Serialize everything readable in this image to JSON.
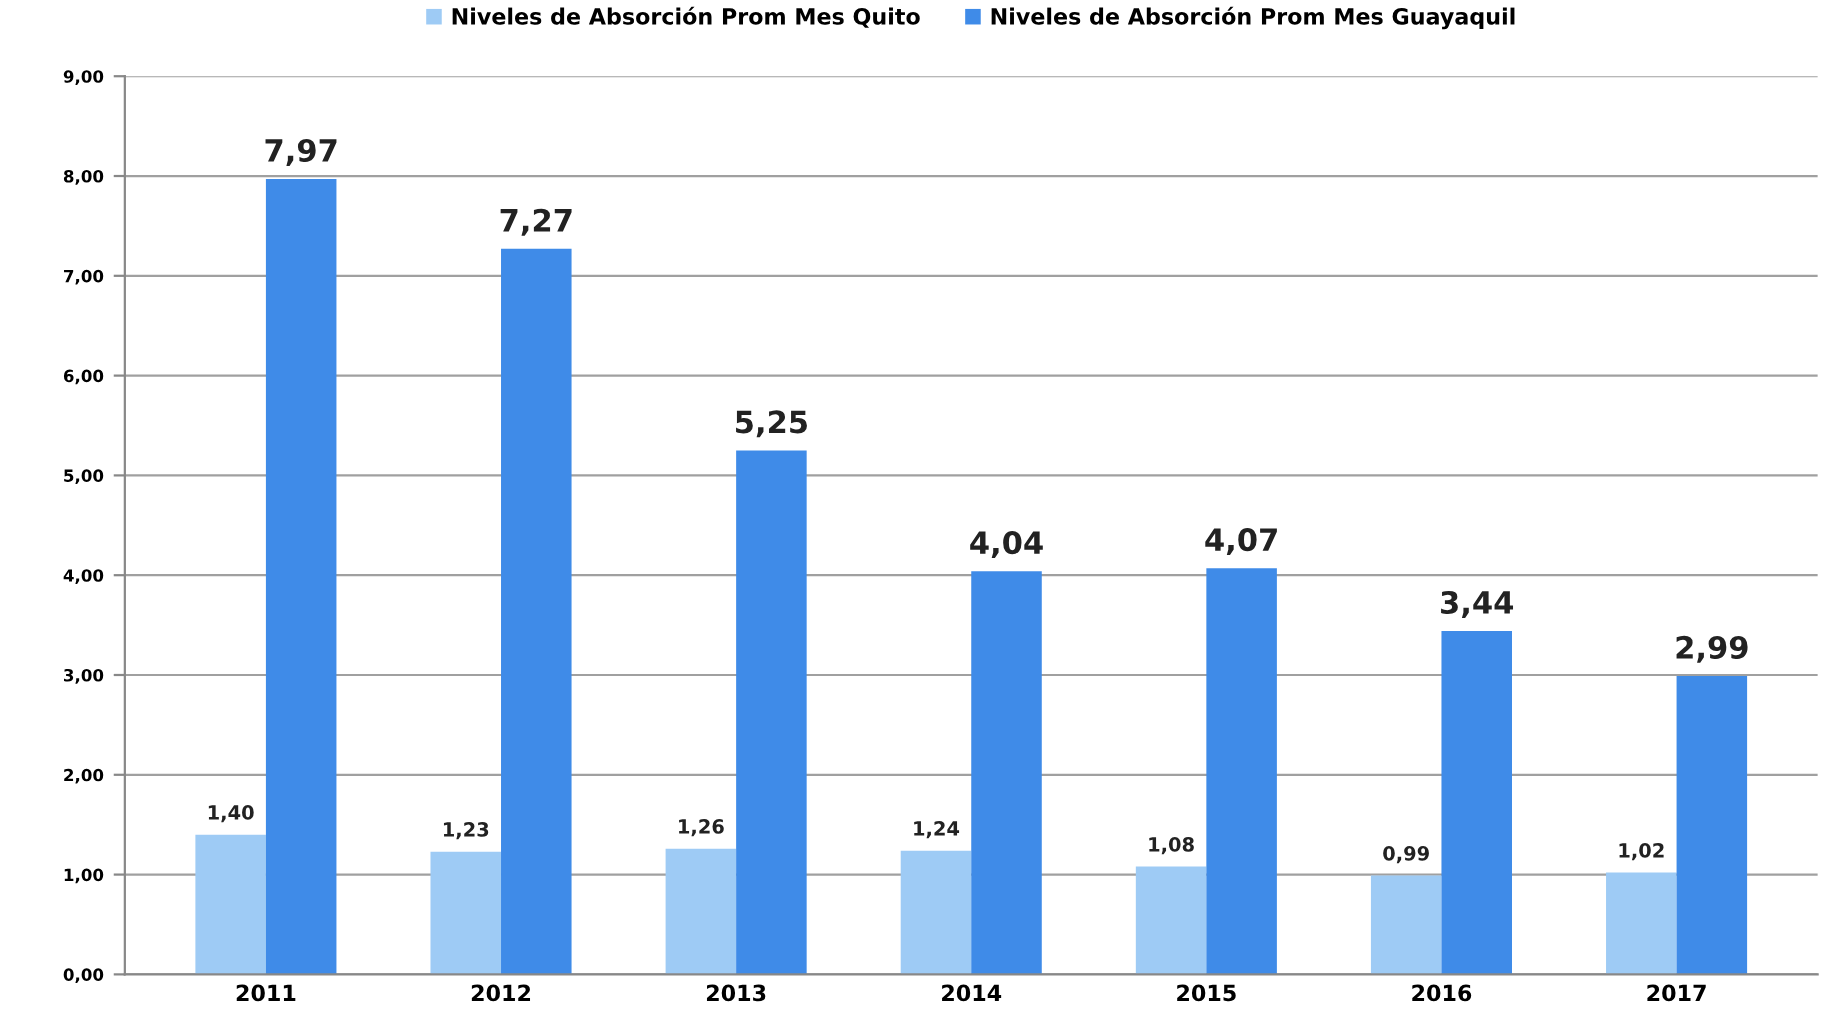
{
  "chart_data": {
    "type": "bar",
    "categories": [
      "2011",
      "2012",
      "2013",
      "2014",
      "2015",
      "2016",
      "2017"
    ],
    "series": [
      {
        "name": "Niveles de Absorción Prom Mes Quito",
        "color": "#9ecbf5",
        "values": [
          1.4,
          1.23,
          1.26,
          1.24,
          1.08,
          0.99,
          1.02
        ],
        "value_labels": [
          "1,40",
          "1,23",
          "1,26",
          "1,24",
          "1,08",
          "0,99",
          "1,02"
        ]
      },
      {
        "name": "Niveles de Absorción Prom Mes Guayaquil",
        "color": "#3f8be8",
        "values": [
          7.97,
          7.27,
          5.25,
          4.04,
          4.07,
          3.44,
          2.99
        ],
        "value_labels": [
          "7,97",
          "7,27",
          "5,25",
          "4,04",
          "4,07",
          "3,44",
          "2,99"
        ]
      }
    ],
    "ylim": [
      0,
      9
    ],
    "yticks": [
      {
        "value": 0,
        "label": "0,00"
      },
      {
        "value": 1,
        "label": "1,00"
      },
      {
        "value": 2,
        "label": "2,00"
      },
      {
        "value": 3,
        "label": "3,00"
      },
      {
        "value": 4,
        "label": "4,00"
      },
      {
        "value": 5,
        "label": "5,00"
      },
      {
        "value": 6,
        "label": "6,00"
      },
      {
        "value": 7,
        "label": "7,00"
      },
      {
        "value": 8,
        "label": "8,00"
      },
      {
        "value": 9,
        "label": "9,00"
      }
    ],
    "grid": "y",
    "legend": "top"
  }
}
